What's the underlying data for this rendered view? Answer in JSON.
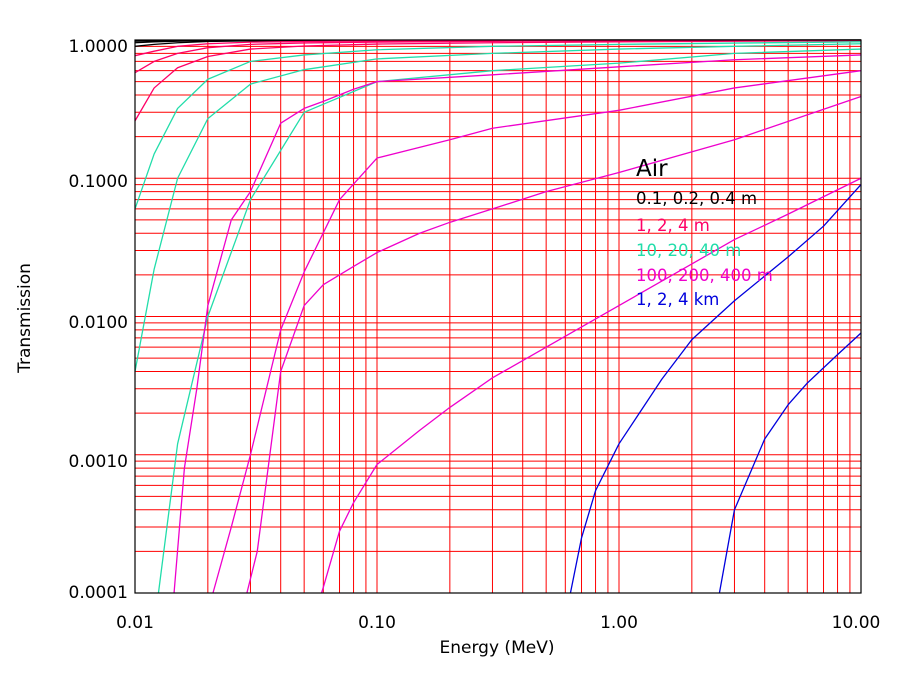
{
  "chart_data": {
    "type": "line",
    "title": "",
    "xlabel": "Energy (MeV)",
    "ylabel": "Transmission",
    "x_scale": "log",
    "y_scale": "log",
    "xlim": [
      0.01,
      10
    ],
    "ylim": [
      0.0001,
      1
    ],
    "x_tick_labels": [
      "0.01",
      "0.10",
      "1.00",
      "10.00"
    ],
    "y_tick_labels": [
      "1.0000",
      "0.1000",
      "0.0100",
      "0.0010",
      "0.0001"
    ],
    "grid": true,
    "grid_color": "#ff0000",
    "legend": {
      "placement": "right",
      "title": "Air",
      "entries": [
        {
          "label": "0.1, 0.2, 0.4 m",
          "color": "#000000"
        },
        {
          "label": "1, 2, 4 m",
          "color": "#ff0066"
        },
        {
          "label": "10, 20, 40 m",
          "color": "#22ddaa"
        },
        {
          "label": "100, 200, 400 m",
          "color": "#ee00cc"
        },
        {
          "label": "1, 2, 4 km",
          "color": "#0000dd"
        }
      ]
    },
    "series": [
      {
        "color": "#000000",
        "x": [
          0.01,
          0.012,
          0.015,
          0.02,
          0.03,
          0.05,
          0.1,
          0.3,
          1,
          3,
          10
        ],
        "y": [
          0.98,
          0.985,
          0.99,
          0.994,
          0.996,
          0.997,
          0.998,
          0.999,
          0.999,
          1.0,
          1.0
        ]
      },
      {
        "color": "#000000",
        "x": [
          0.01,
          0.012,
          0.015,
          0.02,
          0.03,
          0.05,
          0.1,
          0.3,
          1,
          3,
          10
        ],
        "y": [
          0.955,
          0.97,
          0.98,
          0.988,
          0.993,
          0.995,
          0.996,
          0.998,
          0.999,
          0.999,
          1.0
        ]
      },
      {
        "color": "#000000",
        "x": [
          0.01,
          0.012,
          0.015,
          0.02,
          0.03,
          0.05,
          0.1,
          0.3,
          1,
          3,
          10
        ],
        "y": [
          0.9,
          0.93,
          0.955,
          0.975,
          0.985,
          0.99,
          0.993,
          0.996,
          0.997,
          0.998,
          0.999
        ]
      },
      {
        "color": "#ff0066",
        "x": [
          0.01,
          0.012,
          0.015,
          0.02,
          0.03,
          0.05,
          0.1,
          0.3,
          1,
          3,
          10
        ],
        "y": [
          0.77,
          0.83,
          0.9,
          0.94,
          0.965,
          0.975,
          0.983,
          0.989,
          0.992,
          0.995,
          0.997
        ]
      },
      {
        "color": "#ff0066",
        "x": [
          0.01,
          0.012,
          0.015,
          0.02,
          0.03,
          0.05,
          0.1,
          0.3,
          1,
          3,
          10
        ],
        "y": [
          0.58,
          0.7,
          0.8,
          0.88,
          0.93,
          0.952,
          0.966,
          0.978,
          0.985,
          0.99,
          0.994
        ]
      },
      {
        "color": "#ff0066",
        "x": [
          0.01,
          0.012,
          0.015,
          0.02,
          0.03,
          0.05,
          0.1,
          0.3,
          1,
          3,
          10
        ],
        "y": [
          0.26,
          0.45,
          0.63,
          0.76,
          0.86,
          0.905,
          0.935,
          0.955,
          0.97,
          0.98,
          0.988
        ]
      },
      {
        "color": "#22ddaa",
        "x": [
          0.01,
          0.012,
          0.015,
          0.02,
          0.03,
          0.05,
          0.1,
          0.3,
          1,
          3,
          10
        ],
        "y": [
          0.06,
          0.15,
          0.32,
          0.52,
          0.7,
          0.78,
          0.85,
          0.9,
          0.93,
          0.95,
          0.97
        ]
      },
      {
        "color": "#22ddaa",
        "x": [
          0.01,
          0.012,
          0.015,
          0.02,
          0.03,
          0.05,
          0.1,
          0.3,
          1,
          3,
          10
        ],
        "y": [
          0.004,
          0.022,
          0.1,
          0.27,
          0.48,
          0.61,
          0.73,
          0.8,
          0.86,
          0.9,
          0.94
        ]
      },
      {
        "color": "#22ddaa",
        "x": [
          0.0125,
          0.015,
          0.02,
          0.03,
          0.05,
          0.1,
          0.3,
          1,
          3,
          10
        ],
        "y": [
          0.0001,
          0.0012,
          0.01,
          0.07,
          0.3,
          0.5,
          0.6,
          0.68,
          0.8,
          0.86
        ]
      },
      {
        "color": "#ee00cc",
        "x": [
          0.0145,
          0.016,
          0.018,
          0.02,
          0.025,
          0.03,
          0.04,
          0.05,
          0.06,
          0.08,
          0.1,
          0.3,
          1,
          3,
          10
        ],
        "y": [
          0.0001,
          0.0008,
          0.003,
          0.012,
          0.05,
          0.08,
          0.25,
          0.32,
          0.36,
          0.44,
          0.5,
          0.56,
          0.64,
          0.72,
          0.78
        ]
      },
      {
        "color": "#ee00cc",
        "x": [
          0.021,
          0.025,
          0.03,
          0.04,
          0.05,
          0.07,
          0.1,
          0.2,
          0.3,
          1,
          3,
          10
        ],
        "y": [
          0.0001,
          0.0003,
          0.001,
          0.008,
          0.021,
          0.07,
          0.14,
          0.19,
          0.23,
          0.31,
          0.45,
          0.6
        ]
      },
      {
        "color": "#ee00cc",
        "x": [
          0.029,
          0.032,
          0.04,
          0.05,
          0.06,
          0.08,
          0.1,
          0.15,
          0.2,
          0.3,
          0.5,
          1,
          3,
          10
        ],
        "y": [
          0.0001,
          0.0002,
          0.004,
          0.012,
          0.017,
          0.023,
          0.029,
          0.04,
          0.048,
          0.06,
          0.08,
          0.11,
          0.19,
          0.39
        ]
      },
      {
        "color": "#ee00cc",
        "x": [
          0.059,
          0.06,
          0.07,
          0.08,
          0.1,
          0.15,
          0.2,
          0.3,
          0.5,
          1,
          2,
          3,
          5,
          10
        ],
        "y": [
          0.0001,
          0.00011,
          0.00028,
          0.00045,
          0.00085,
          0.0015,
          0.0022,
          0.0036,
          0.006,
          0.012,
          0.024,
          0.036,
          0.055,
          0.1
        ]
      },
      {
        "color": "#0000dd",
        "x": [
          0.63,
          0.7,
          0.8,
          1,
          1.5,
          2,
          3,
          5,
          7,
          10
        ],
        "y": [
          0.0001,
          0.00025,
          0.00055,
          0.0012,
          0.0035,
          0.0068,
          0.013,
          0.027,
          0.045,
          0.09
        ]
      },
      {
        "color": "#0000dd",
        "x": [
          2.6,
          3,
          4,
          5,
          6,
          8,
          10
        ],
        "y": [
          0.0001,
          0.0004,
          0.0013,
          0.0023,
          0.0033,
          0.0053,
          0.0076
        ]
      }
    ]
  }
}
